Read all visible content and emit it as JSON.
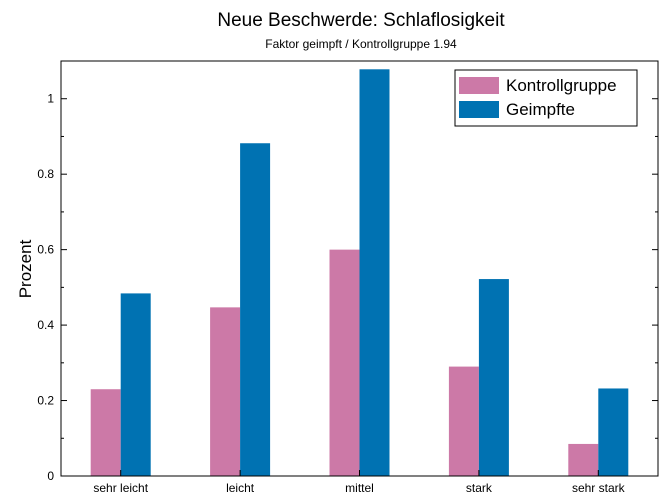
{
  "chart_data": {
    "type": "bar",
    "title": "Neue Beschwerde: Schlaflosigkeit",
    "subtitle": "Faktor geimpft / Kontrollgruppe 1.94",
    "xlabel": "",
    "ylabel": "Prozent",
    "categories": [
      "sehr leicht",
      "leicht",
      "mittel",
      "stark",
      "sehr stark"
    ],
    "series": [
      {
        "name": "Kontrollgruppe",
        "color": "#cc79a7",
        "values": [
          0.23,
          0.447,
          0.6,
          0.29,
          0.085
        ]
      },
      {
        "name": "Geimpfte",
        "color": "#0072b2",
        "values": [
          0.484,
          0.882,
          1.078,
          0.522,
          0.232
        ]
      }
    ],
    "ylim": [
      0,
      1.1
    ],
    "yticks": [
      0,
      0.2,
      0.4,
      0.6,
      0.8,
      1
    ],
    "ytick_labels": [
      "0",
      "0.2",
      "0.4",
      "0.6",
      "0.8",
      "1"
    ],
    "grid": false,
    "legend_position": "top-right"
  }
}
